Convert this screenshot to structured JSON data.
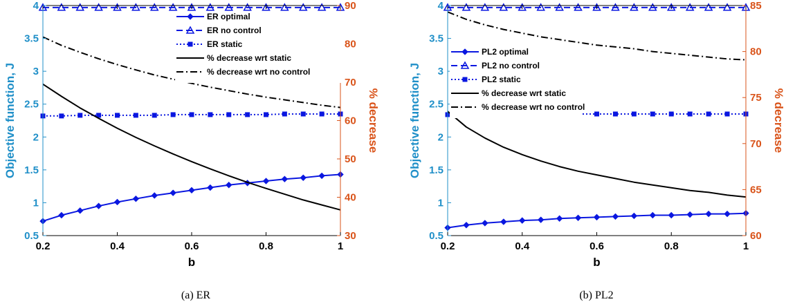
{
  "colors": {
    "left_axis": "#1f8fc8",
    "right_axis": "#d95319",
    "series_blue": "#0a17e0",
    "black": "#000000"
  },
  "chart_data": [
    {
      "type": "line",
      "caption": "(a) ER",
      "xlabel": "b",
      "ylabel_left": "Objective function, J",
      "ylabel_right": "% decrease",
      "xlim": [
        0.2,
        1
      ],
      "xticks": [
        "0.2",
        "0.4",
        "0.6",
        "0.8",
        "1"
      ],
      "ylim_left": [
        0.5,
        4
      ],
      "yticks_left": [
        "0.5",
        "1",
        "1.5",
        "2",
        "2.5",
        "3",
        "3.5",
        "4"
      ],
      "ylim_right": [
        30,
        90
      ],
      "yticks_right": [
        "30",
        "40",
        "50",
        "60",
        "70",
        "80",
        "90"
      ],
      "legend_position": "top-right",
      "x": [
        0.2,
        0.25,
        0.3,
        0.35,
        0.4,
        0.45,
        0.5,
        0.55,
        0.6,
        0.65,
        0.7,
        0.75,
        0.8,
        0.85,
        0.9,
        0.95,
        1.0
      ],
      "series": [
        {
          "name": "ER optimal",
          "axis": "left",
          "line": "solid",
          "marker": "diamond",
          "values": [
            0.72,
            0.81,
            0.88,
            0.95,
            1.01,
            1.06,
            1.11,
            1.15,
            1.19,
            1.23,
            1.27,
            1.3,
            1.33,
            1.36,
            1.38,
            1.41,
            1.43
          ]
        },
        {
          "name": "ER no control",
          "axis": "left",
          "line": "dashed",
          "marker": "triangle",
          "values": [
            3.97,
            3.97,
            3.97,
            3.97,
            3.97,
            3.97,
            3.97,
            3.97,
            3.97,
            3.97,
            3.97,
            3.97,
            3.97,
            3.97,
            3.97,
            3.97,
            3.97
          ]
        },
        {
          "name": "ER static",
          "axis": "left",
          "line": "dotted",
          "marker": "square",
          "values": [
            2.32,
            2.32,
            2.33,
            2.33,
            2.33,
            2.33,
            2.33,
            2.34,
            2.34,
            2.34,
            2.34,
            2.34,
            2.34,
            2.35,
            2.35,
            2.35,
            2.35
          ]
        },
        {
          "name": "% decrease wrt static",
          "axis": "right",
          "line": "solid",
          "marker": "none",
          "values": [
            69.5,
            66.3,
            63.3,
            60.6,
            58.0,
            55.6,
            53.4,
            51.3,
            49.3,
            47.4,
            45.6,
            43.9,
            42.3,
            40.8,
            39.3,
            38.0,
            36.7
          ]
        },
        {
          "name": "% decrease wrt no control",
          "axis": "right",
          "line": "dashdot",
          "marker": "none",
          "values": [
            81.8,
            79.6,
            77.8,
            76.1,
            74.6,
            73.2,
            71.9,
            70.8,
            69.7,
            68.7,
            67.8,
            66.9,
            66.1,
            65.4,
            64.7,
            64.0,
            63.4
          ]
        }
      ]
    },
    {
      "type": "line",
      "caption": "(b) PL2",
      "xlabel": "b",
      "ylabel_left": "Objective function, J",
      "ylabel_right": "% decrease",
      "xlim": [
        0.2,
        1
      ],
      "xticks": [
        "0.2",
        "0.4",
        "0.6",
        "0.8",
        "1"
      ],
      "ylim_left": [
        0.5,
        4
      ],
      "yticks_left": [
        "0.5",
        "1",
        "1.5",
        "2",
        "2.5",
        "3",
        "3.5",
        "4"
      ],
      "ylim_right": [
        60,
        85
      ],
      "yticks_right": [
        "60",
        "65",
        "70",
        "75",
        "80",
        "85"
      ],
      "legend_position": "top-left",
      "x": [
        0.2,
        0.25,
        0.3,
        0.35,
        0.4,
        0.45,
        0.5,
        0.55,
        0.6,
        0.65,
        0.7,
        0.75,
        0.8,
        0.85,
        0.9,
        0.95,
        1.0
      ],
      "series": [
        {
          "name": "PL2 optimal",
          "axis": "left",
          "line": "solid",
          "marker": "diamond",
          "values": [
            0.62,
            0.66,
            0.69,
            0.71,
            0.73,
            0.74,
            0.76,
            0.77,
            0.78,
            0.79,
            0.8,
            0.81,
            0.81,
            0.82,
            0.83,
            0.83,
            0.84
          ]
        },
        {
          "name": "PL2 no control",
          "axis": "left",
          "line": "dashed",
          "marker": "triangle",
          "values": [
            3.97,
            3.97,
            3.97,
            3.97,
            3.97,
            3.97,
            3.97,
            3.97,
            3.97,
            3.97,
            3.97,
            3.97,
            3.97,
            3.97,
            3.97,
            3.97,
            3.97
          ]
        },
        {
          "name": "PL2 static",
          "axis": "left",
          "line": "dotted",
          "marker": "square",
          "values": [
            2.34,
            2.34,
            2.34,
            2.34,
            2.35,
            2.35,
            2.35,
            2.35,
            2.35,
            2.35,
            2.35,
            2.35,
            2.35,
            2.35,
            2.35,
            2.35,
            2.35
          ]
        },
        {
          "name": "% decrease wrt static",
          "axis": "right",
          "line": "solid",
          "marker": "none",
          "values": [
            73.5,
            71.8,
            70.6,
            69.6,
            68.8,
            68.1,
            67.5,
            67.0,
            66.6,
            66.2,
            65.8,
            65.5,
            65.2,
            64.9,
            64.7,
            64.4,
            64.2
          ]
        },
        {
          "name": "% decrease wrt no control",
          "axis": "right",
          "line": "dashdot",
          "marker": "none",
          "values": [
            84.3,
            83.5,
            82.9,
            82.4,
            82.0,
            81.6,
            81.3,
            81.0,
            80.7,
            80.5,
            80.3,
            80.0,
            79.8,
            79.6,
            79.4,
            79.2,
            79.1
          ]
        }
      ]
    }
  ]
}
